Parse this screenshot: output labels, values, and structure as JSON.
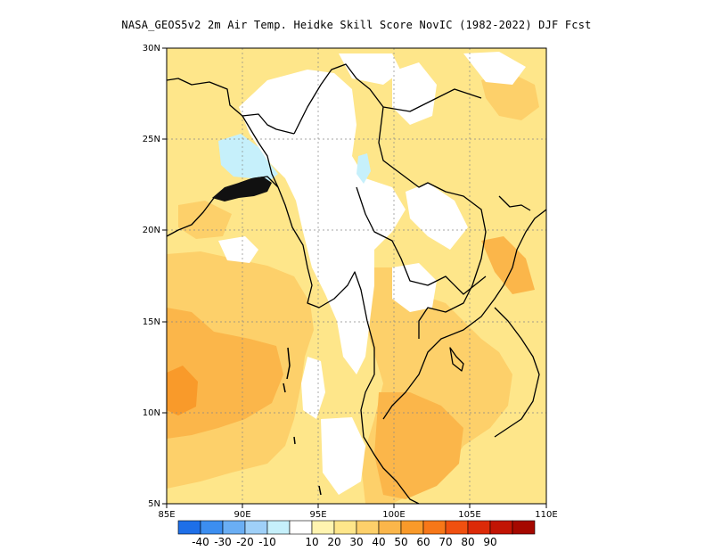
{
  "title": "NASA_GEOS5v2  2m Air Temp. Heidke Skill Score NovIC (1982-2022) DJF Fcst",
  "map": {
    "lon_range": [
      85,
      110
    ],
    "lat_range": [
      5,
      30
    ],
    "x_ticks": [
      "85E",
      "90E",
      "95E",
      "100E",
      "105E",
      "110E"
    ],
    "y_ticks": [
      "5N",
      "10N",
      "15N",
      "20N",
      "25N",
      "30N"
    ],
    "grid": "dotted"
  },
  "colorbar": {
    "labels": [
      "-40",
      "-30",
      "-20",
      "-10",
      "10",
      "20",
      "30",
      "40",
      "50",
      "60",
      "70",
      "80",
      "90"
    ],
    "colors": [
      "#1e6fe8",
      "#3c8ef0",
      "#6aaef4",
      "#9fd0f8",
      "#c6f0fb",
      "#ffffff",
      "#fff4b0",
      "#fee68a",
      "#fdd06a",
      "#fbb64a",
      "#f99a2a",
      "#f77718",
      "#f05010",
      "#dc2a08",
      "#c21404",
      "#a50800"
    ]
  }
}
